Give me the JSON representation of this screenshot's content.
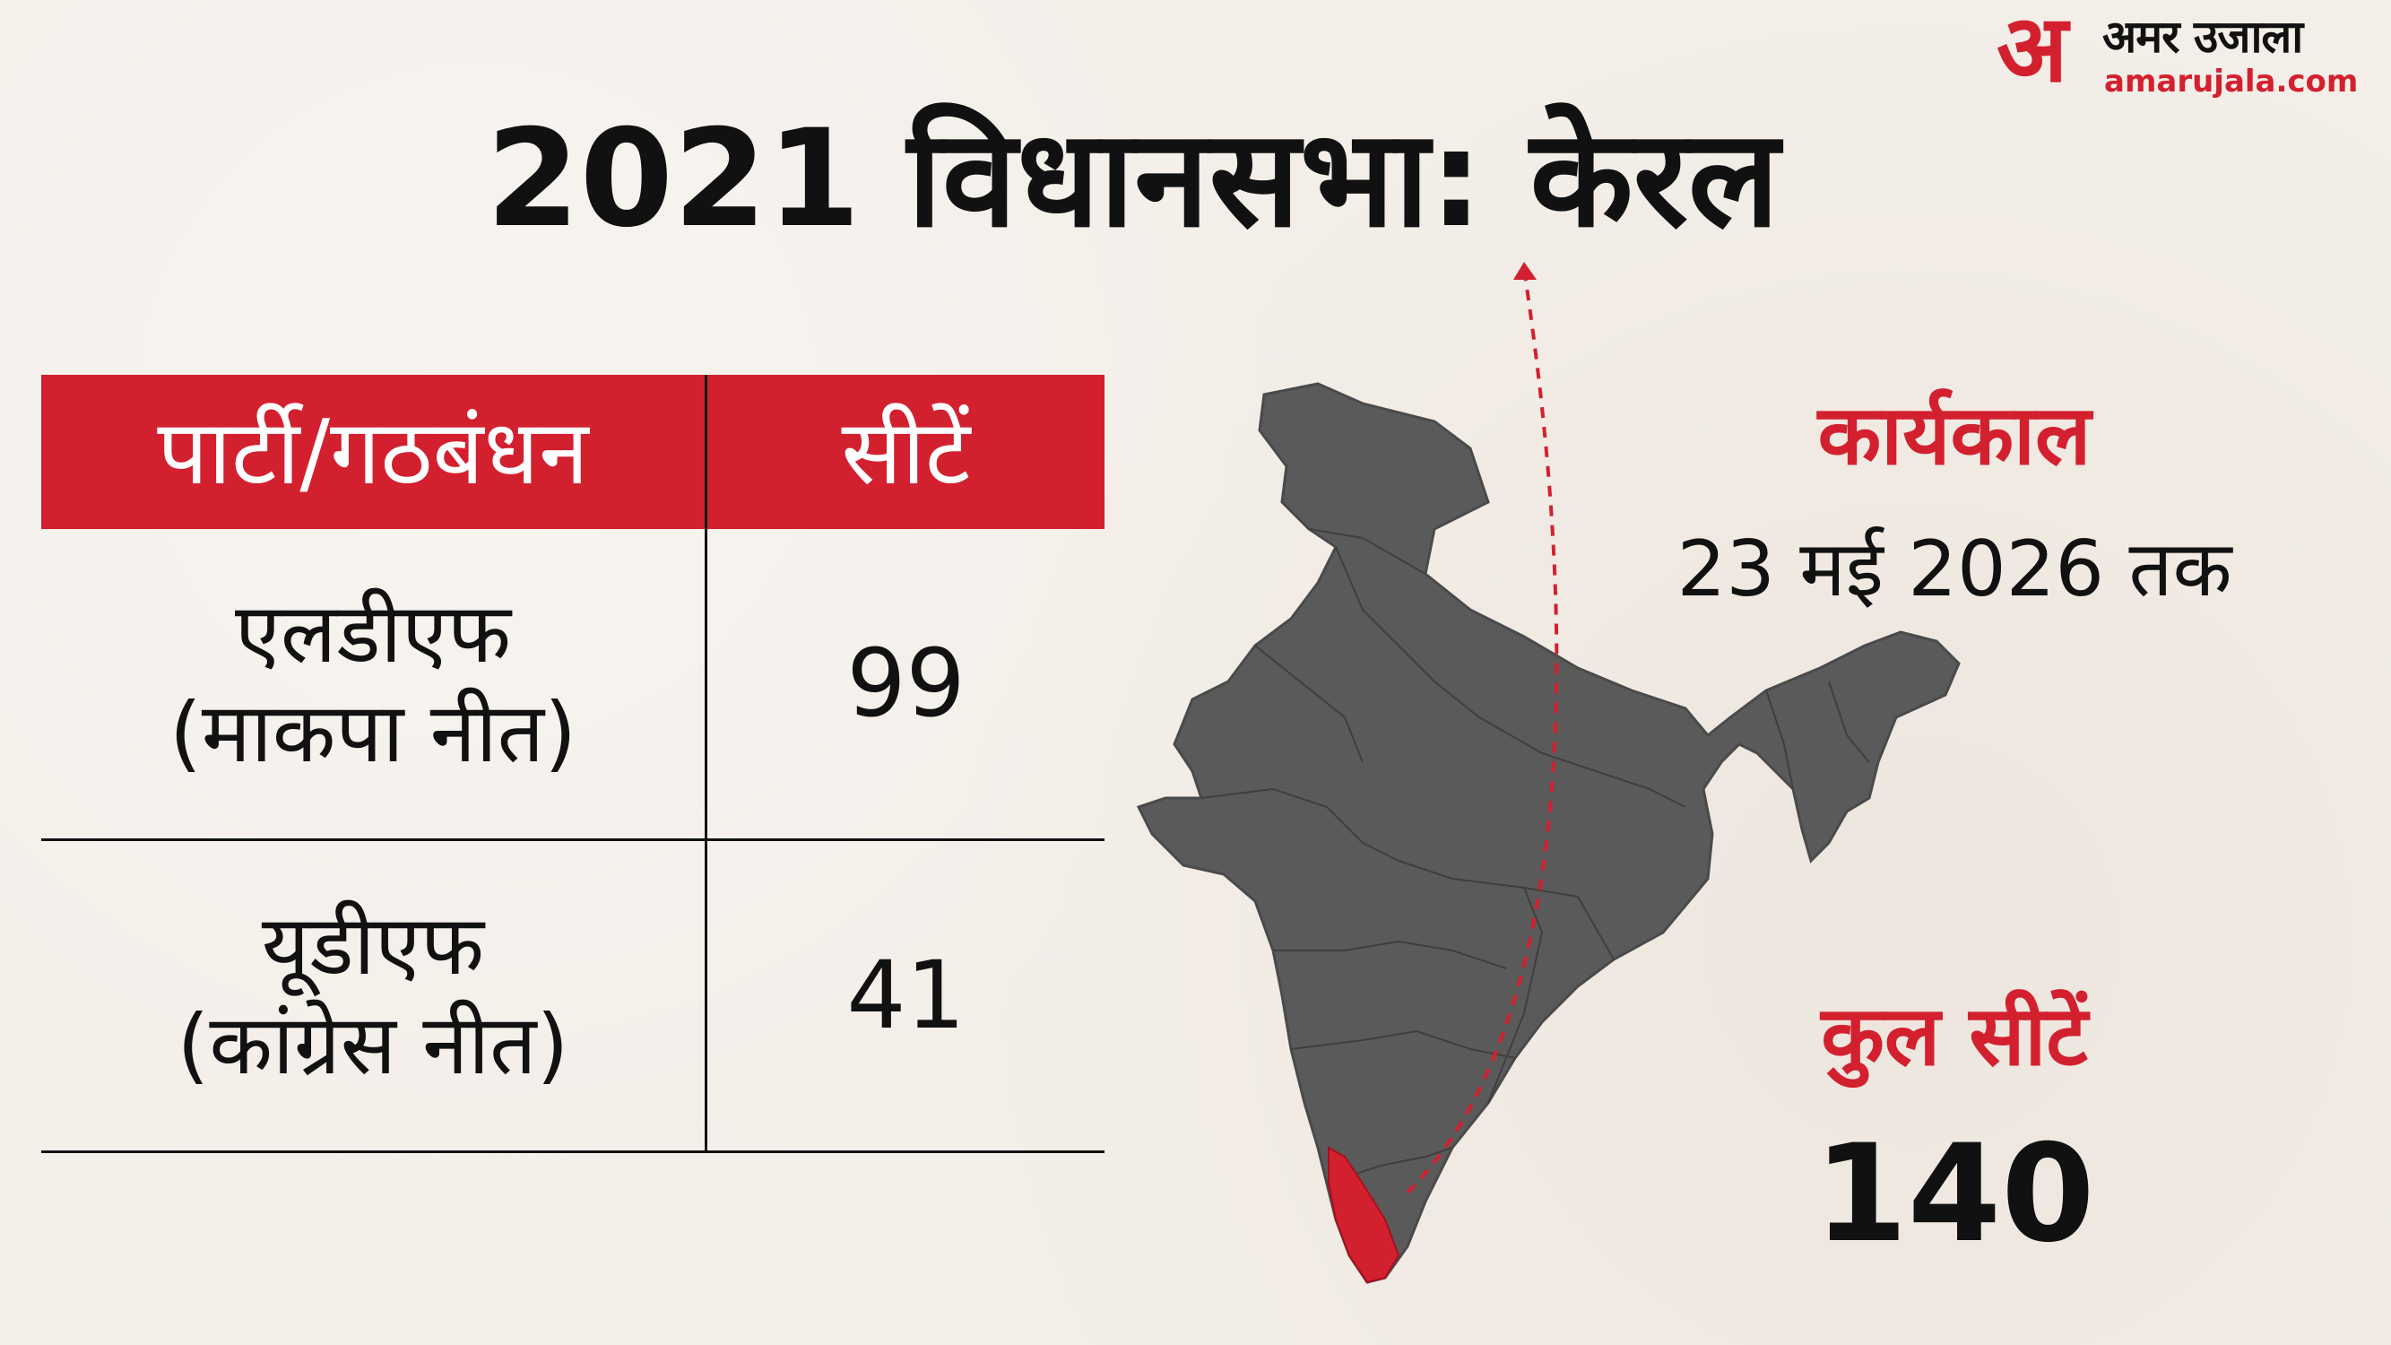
{
  "logo": {
    "mark": "अ",
    "name_hindi": "अमर उजाला",
    "domain": "amarujala.com"
  },
  "title": "2021 विधानसभा: केरल",
  "table": {
    "headers": [
      "पार्टी/गठबंधन",
      "सीटें"
    ],
    "rows": [
      {
        "party_line1": "एलडीएफ",
        "party_line2": "(माकपा नीत)",
        "seats": "99"
      },
      {
        "party_line1": "यूडीएफ",
        "party_line2": "(कांग्रेस नीत)",
        "seats": "41"
      }
    ]
  },
  "term": {
    "label": "कार्यकाल",
    "value": "23 मई 2026 तक"
  },
  "total": {
    "label": "कुल सीटें",
    "value": "140"
  },
  "colors": {
    "accent": "#d3202f",
    "map_fill": "#5a5a5a",
    "highlight": "#d3202f",
    "background": "#f3eee8"
  }
}
